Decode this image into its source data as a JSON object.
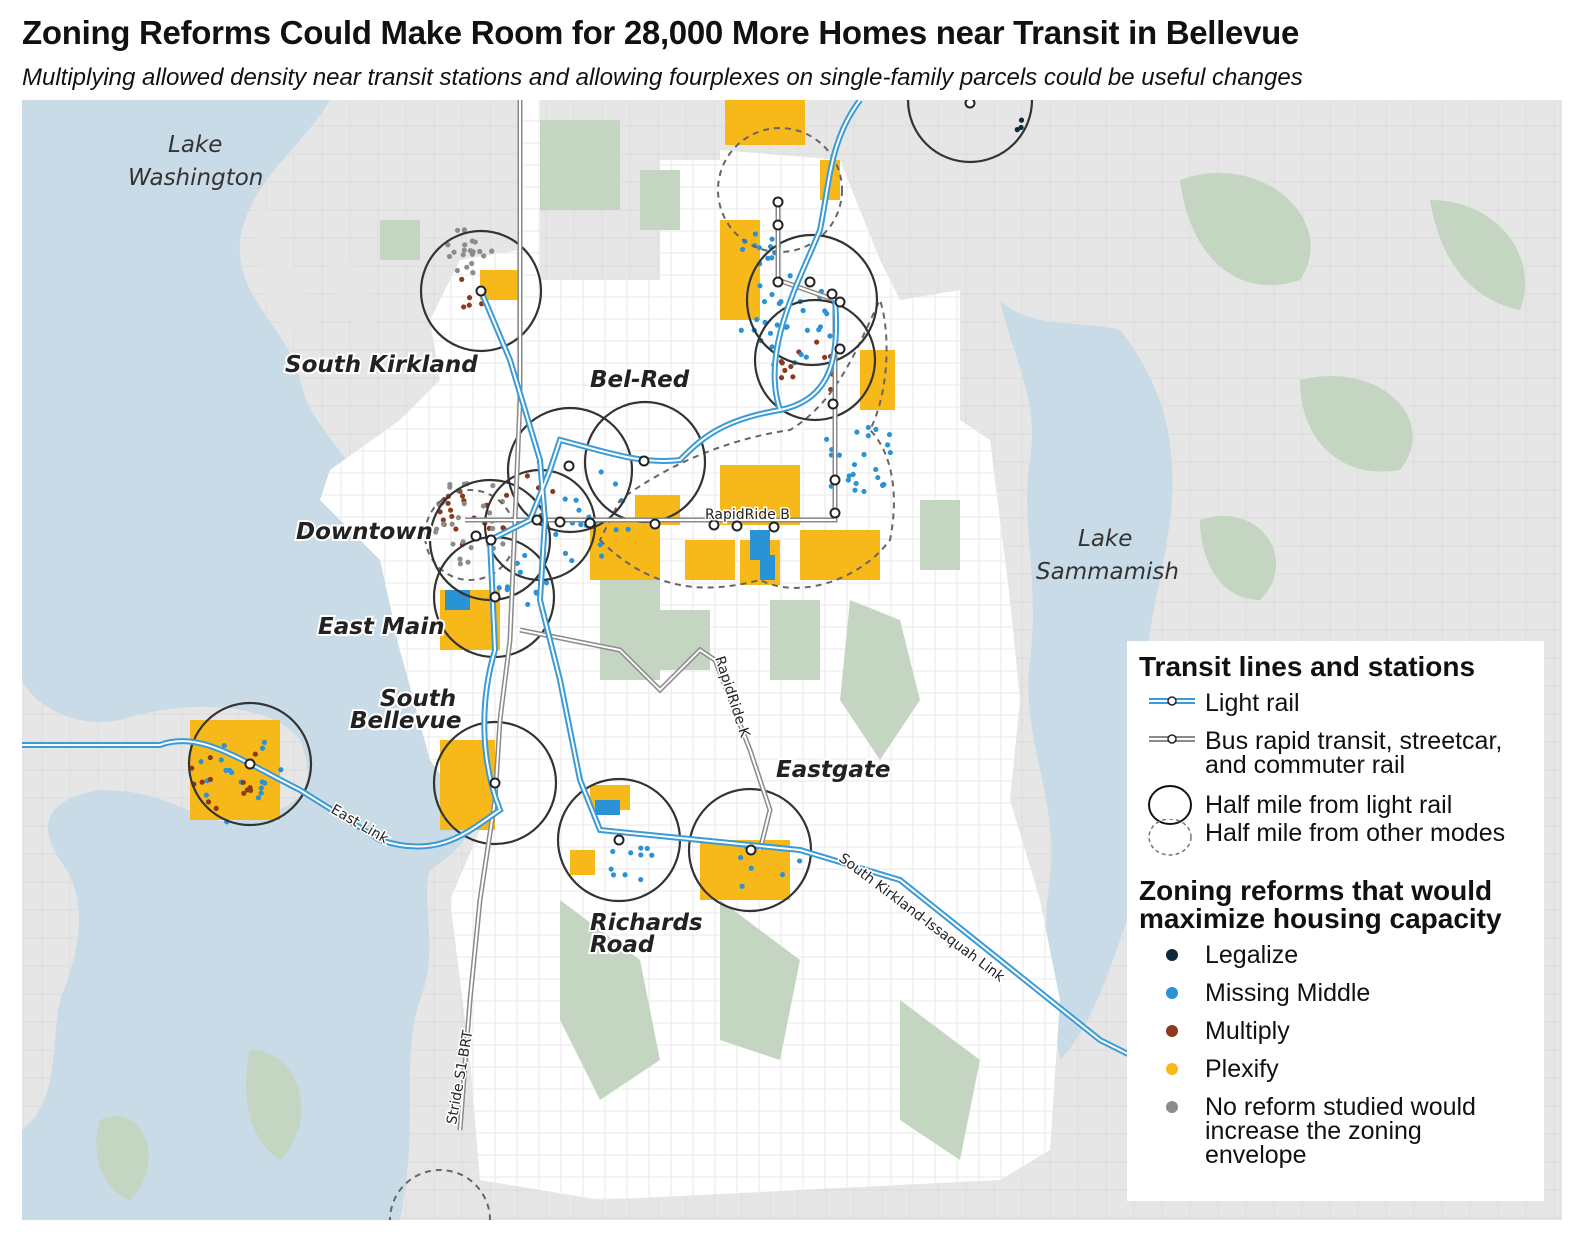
{
  "title": "Zoning Reforms Could Make Room for 28,000 More Homes near Transit in Bellevue",
  "subtitle": "Multiplying allowed density near transit stations and allowing fourplexes on single-family parcels could be useful changes",
  "map": {
    "water_labels": {
      "lake_washington_1": "Lake",
      "lake_washington_2": "Washington",
      "lake_sammamish_1": "Lake",
      "lake_sammamish_2": "Sammamish"
    },
    "area_labels": {
      "south_kirkland": "South Kirkland",
      "bel_red": "Bel-Red",
      "downtown": "Downtown",
      "east_main": "East Main",
      "south_bellevue_1": "South",
      "south_bellevue_2": "Bellevue",
      "eastgate": "Eastgate",
      "richards_road_1": "Richards",
      "richards_road_2": "Road"
    },
    "line_labels": {
      "rapidride_b": "RapidRide B",
      "rapidride_k": "RapidRide K",
      "east_link": "East Link",
      "issaquah_link": "South Kirkland-Issaquah Link",
      "stride_s1": "Stride S1 BRT"
    },
    "colors": {
      "water": "#c9dbe6",
      "land": "#e6e6e6",
      "city": "#ffffff",
      "park": "#c4d6c2",
      "light_rail": "#3a9bd5",
      "brt": "#8a8a8a",
      "legalize": "#0d2a3a",
      "missing_middle": "#2a93d5",
      "multiply": "#8b3a1e",
      "plexify": "#f7b91a",
      "no_reform": "#8c8c8c"
    }
  },
  "legend": {
    "transit_title": "Transit lines and stations",
    "transit_items": [
      {
        "label": "Light rail",
        "icon": "light-rail-line-icon"
      },
      {
        "label": "Bus rapid transit, streetcar, and commuter rail",
        "icon": "brt-line-icon"
      },
      {
        "label": "Half mile from light rail",
        "icon": "solid-circle-icon"
      },
      {
        "label": "Half mile from other modes",
        "icon": "dashed-circle-icon"
      }
    ],
    "zoning_title": "Zoning reforms that would maximize housing capacity",
    "zoning_items": [
      {
        "label": "Legalize",
        "color": "#0d2a3a"
      },
      {
        "label": "Missing Middle",
        "color": "#2a93d5"
      },
      {
        "label": "Multiply",
        "color": "#8b3a1e"
      },
      {
        "label": "Plexify",
        "color": "#f7b91a"
      },
      {
        "label": "No reform studied would increase the zoning envelope",
        "color": "#8c8c8c"
      }
    ]
  }
}
